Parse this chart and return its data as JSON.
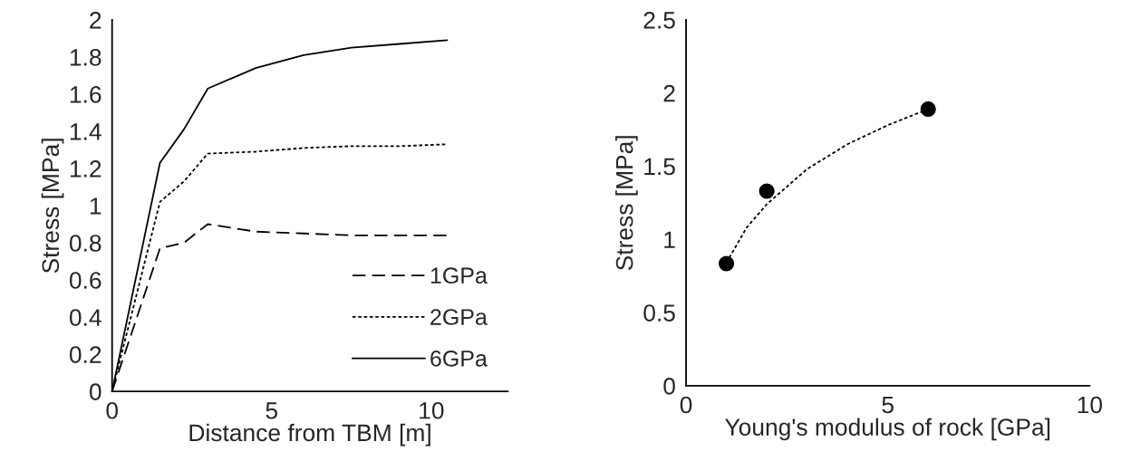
{
  "chart_data": [
    {
      "type": "line",
      "xlabel": "Distance from TBM [m]",
      "ylabel": "Stress [MPa]",
      "xlim": [
        0,
        12.4
      ],
      "xticks": [
        0,
        5,
        10
      ],
      "ylim": [
        0,
        2
      ],
      "yticks": [
        0,
        0.2,
        0.4,
        0.6,
        0.8,
        1,
        1.2,
        1.4,
        1.6,
        1.8,
        2
      ],
      "legend": "bottom right",
      "x": [
        0,
        1.5,
        2.25,
        3,
        4.5,
        6,
        7.5,
        9,
        10.5
      ],
      "series": [
        {
          "name": "1GPa",
          "color": "#000000",
          "line_style": "dashed",
          "values": [
            0,
            0.77,
            0.8,
            0.9,
            0.86,
            0.85,
            0.84,
            0.84,
            0.84
          ]
        },
        {
          "name": "2GPa",
          "color": "#000000",
          "line_style": "dotted",
          "values": [
            0,
            1.02,
            1.13,
            1.28,
            1.29,
            1.31,
            1.32,
            1.32,
            1.33
          ]
        },
        {
          "name": "6GPa",
          "color": "#000000",
          "line_style": "solid",
          "values": [
            0,
            1.23,
            1.41,
            1.63,
            1.74,
            1.81,
            1.85,
            1.87,
            1.89
          ]
        }
      ]
    },
    {
      "type": "scatter",
      "xlabel": "Young's modulus of rock [GPa]",
      "ylabel": "Stress [MPa]",
      "xlim": [
        0,
        10
      ],
      "xticks": [
        0,
        5,
        10
      ],
      "ylim": [
        0,
        2.5
      ],
      "yticks": [
        0,
        0.5,
        1,
        1.5,
        2,
        2.5
      ],
      "series": [
        {
          "type": "scatter",
          "color": "#000000",
          "marker": "circle",
          "x": [
            1,
            2,
            6
          ],
          "values": [
            0.835,
            1.33,
            1.89
          ]
        },
        {
          "type": "line",
          "color": "#000000",
          "line_style": "dotted",
          "marker": "none",
          "x": [
            1,
            1.5,
            2,
            3,
            4,
            5,
            6
          ],
          "values": [
            0.84,
            1.08,
            1.24,
            1.48,
            1.65,
            1.78,
            1.89
          ]
        }
      ]
    }
  ]
}
